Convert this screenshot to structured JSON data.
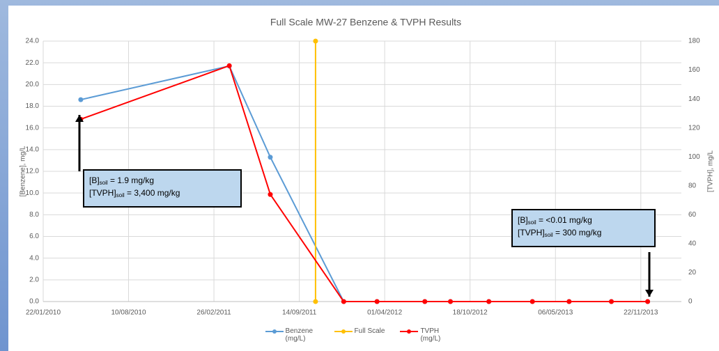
{
  "chart_data": {
    "type": "line",
    "title": "Full Scale MW-27 Benzene & TVPH Results",
    "y_label": "[Benzene], mg/L",
    "y2_label": "[TVPH], mg/L",
    "xlim": [
      "22/01/2010",
      "25/02/2014"
    ],
    "xticks": [
      "22/01/2010",
      "10/08/2010",
      "26/02/2011",
      "14/09/2011",
      "01/04/2012",
      "18/10/2012",
      "06/05/2013",
      "22/11/2013"
    ],
    "ylim": [
      0,
      24
    ],
    "yticks": [
      {
        "value": 0,
        "label": "0.0"
      },
      {
        "value": 2,
        "label": "2.0"
      },
      {
        "value": 4,
        "label": "4.0"
      },
      {
        "value": 6,
        "label": "6.0"
      },
      {
        "value": 8,
        "label": "8.0"
      },
      {
        "value": 10,
        "label": "10.0"
      },
      {
        "value": 12,
        "label": "12.0"
      },
      {
        "value": 14,
        "label": "14.0"
      },
      {
        "value": 16,
        "label": "16.0"
      },
      {
        "value": 18,
        "label": "18.0"
      },
      {
        "value": 20,
        "label": "20.0"
      },
      {
        "value": 22,
        "label": "22.0"
      },
      {
        "value": 24,
        "label": "24.0"
      }
    ],
    "y2lim": [
      0,
      180
    ],
    "y2ticks": [
      0,
      20,
      40,
      60,
      80,
      100,
      120,
      140,
      160,
      180
    ],
    "grid": true,
    "legend": "bottom",
    "series": [
      {
        "name": "Benzene (mg/L)",
        "color": "#5b9bd5",
        "x": [
          "20/04/2010",
          "03/04/2011",
          "08/07/2011",
          "27/12/2011",
          "14/03/2012",
          "04/07/2012",
          "02/09/2012",
          "01/12/2012",
          "13/03/2013",
          "07/06/2013",
          "14/09/2013",
          "08/12/2013"
        ],
        "values": [
          18.6,
          21.7,
          13.3,
          0,
          0,
          0,
          0,
          0,
          0,
          0,
          0,
          0
        ]
      },
      {
        "name": "Full Scale",
        "color": "#ffc000",
        "x": [
          "22/10/2011",
          "22/10/2011"
        ],
        "values": [
          0,
          24
        ]
      },
      {
        "name": "TVPH (mg/L)",
        "color": "#ff0000",
        "axis": "y2",
        "x": [
          "20/04/2010",
          "03/04/2011",
          "08/07/2011",
          "27/12/2011",
          "14/03/2012",
          "04/07/2012",
          "02/09/2012",
          "01/12/2012",
          "13/03/2013",
          "07/06/2013",
          "14/09/2013",
          "08/12/2013"
        ],
        "values": [
          126,
          163,
          74,
          0,
          0,
          0,
          0,
          0,
          0,
          0,
          0,
          0
        ]
      }
    ],
    "annotations": [
      [
        {
          "main": "[B]",
          "sub": "soil",
          "rest": " = 1.9 mg/kg"
        },
        {
          "main": "[TVPH]",
          "sub": "soil",
          "rest": " = 3,400 mg/kg"
        }
      ],
      [
        {
          "main": "[B]",
          "sub": "soil",
          "rest": " = <0.01 mg/kg"
        },
        {
          "main": "[TVPH]",
          "sub": "soil",
          "rest": " = 300 mg/kg"
        }
      ]
    ]
  }
}
